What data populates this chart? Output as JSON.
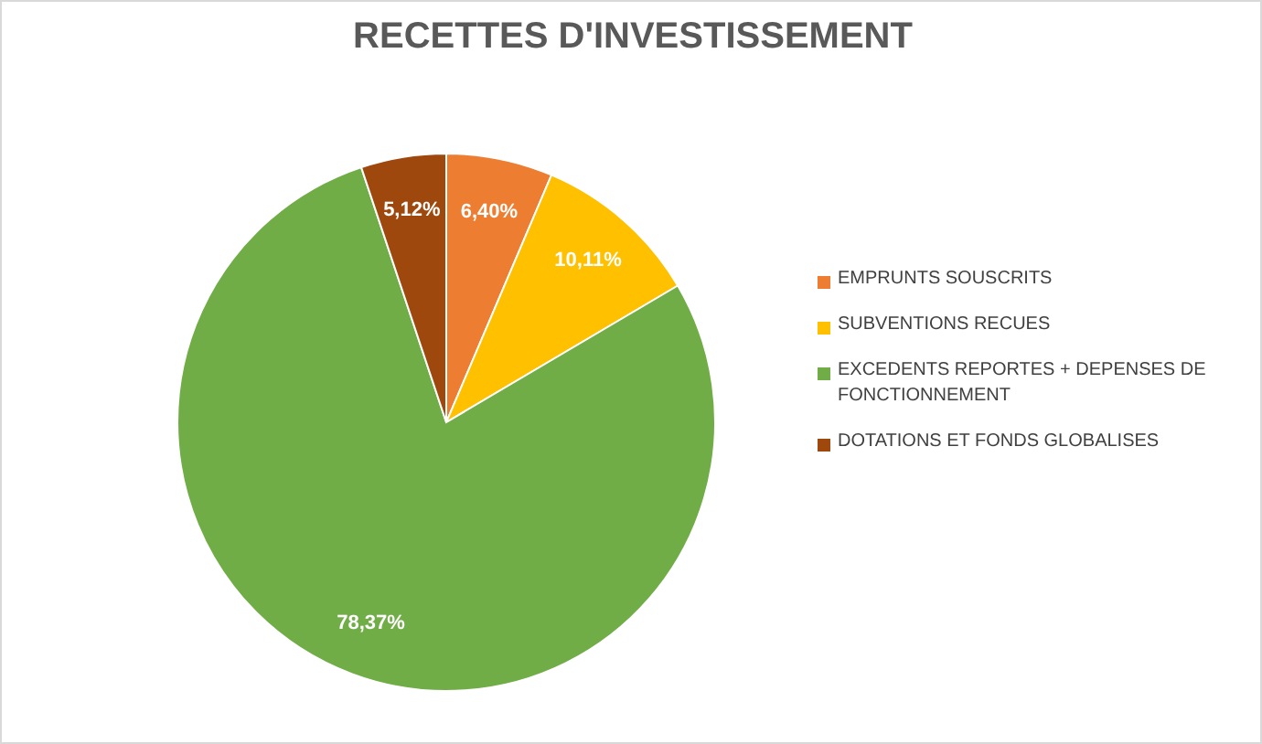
{
  "chart_data": {
    "type": "pie",
    "title": "RECETTES D'INVESTISSEMENT",
    "categories": [
      "EMPRUNTS SOUSCRITS",
      "SUBVENTIONS RECUES",
      "EXCEDENTS REPORTES + DEPENSES DE FONCTIONNEMENT",
      "DOTATIONS ET FONDS GLOBALISES"
    ],
    "values": [
      6.4,
      10.11,
      78.37,
      5.12
    ],
    "value_labels": [
      "6,40%",
      "10,11%",
      "78,37%",
      "5,12%"
    ],
    "colors": [
      "#ed7d31",
      "#ffc000",
      "#70ad47",
      "#9e480e"
    ],
    "legend": "right"
  }
}
